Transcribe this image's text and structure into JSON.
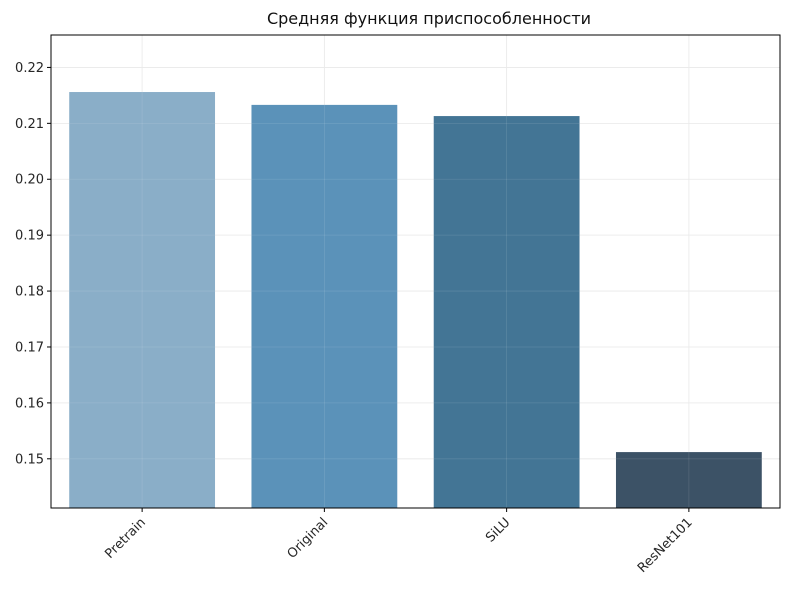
{
  "chart_data": {
    "type": "bar",
    "title": "Средняя функция приспособленности",
    "xlabel": "",
    "ylabel": "",
    "categories": [
      "Pretrain",
      "Original",
      "SiLU",
      "ResNet101"
    ],
    "values": [
      0.2156,
      0.2133,
      0.2113,
      0.1512
    ],
    "colors": [
      "#8aaec8",
      "#5b92b9",
      "#437595",
      "#3c5266"
    ],
    "ylim": [
      0.1412,
      0.2258
    ],
    "yticks": [
      0.15,
      0.16,
      0.17,
      0.18,
      0.19,
      0.2,
      0.21,
      0.22
    ],
    "ytick_labels": [
      "0.15",
      "0.16",
      "0.17",
      "0.18",
      "0.19",
      "0.20",
      "0.21",
      "0.22"
    ],
    "grid": true,
    "xtick_rotation_deg": 45
  }
}
